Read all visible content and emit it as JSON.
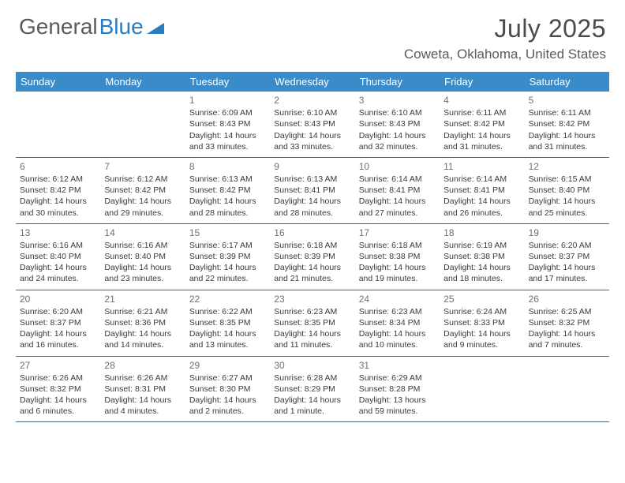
{
  "logo": {
    "text1": "General",
    "text2": "Blue"
  },
  "title": "July 2025",
  "location": "Coweta, Oklahoma, United States",
  "day_labels": [
    "Sunday",
    "Monday",
    "Tuesday",
    "Wednesday",
    "Thursday",
    "Friday",
    "Saturday"
  ],
  "colors": {
    "header_bg": "#3b8bc9",
    "header_text": "#ffffff",
    "border": "#3b6a8f",
    "logo_gray": "#5a5a5a",
    "logo_blue": "#2b7bbf"
  },
  "weeks": [
    [
      {
        "empty": true
      },
      {
        "empty": true
      },
      {
        "num": "1",
        "sunrise": "6:09 AM",
        "sunset": "8:43 PM",
        "daylight": "14 hours and 33 minutes."
      },
      {
        "num": "2",
        "sunrise": "6:10 AM",
        "sunset": "8:43 PM",
        "daylight": "14 hours and 33 minutes."
      },
      {
        "num": "3",
        "sunrise": "6:10 AM",
        "sunset": "8:43 PM",
        "daylight": "14 hours and 32 minutes."
      },
      {
        "num": "4",
        "sunrise": "6:11 AM",
        "sunset": "8:42 PM",
        "daylight": "14 hours and 31 minutes."
      },
      {
        "num": "5",
        "sunrise": "6:11 AM",
        "sunset": "8:42 PM",
        "daylight": "14 hours and 31 minutes."
      }
    ],
    [
      {
        "num": "6",
        "sunrise": "6:12 AM",
        "sunset": "8:42 PM",
        "daylight": "14 hours and 30 minutes."
      },
      {
        "num": "7",
        "sunrise": "6:12 AM",
        "sunset": "8:42 PM",
        "daylight": "14 hours and 29 minutes."
      },
      {
        "num": "8",
        "sunrise": "6:13 AM",
        "sunset": "8:42 PM",
        "daylight": "14 hours and 28 minutes."
      },
      {
        "num": "9",
        "sunrise": "6:13 AM",
        "sunset": "8:41 PM",
        "daylight": "14 hours and 28 minutes."
      },
      {
        "num": "10",
        "sunrise": "6:14 AM",
        "sunset": "8:41 PM",
        "daylight": "14 hours and 27 minutes."
      },
      {
        "num": "11",
        "sunrise": "6:14 AM",
        "sunset": "8:41 PM",
        "daylight": "14 hours and 26 minutes."
      },
      {
        "num": "12",
        "sunrise": "6:15 AM",
        "sunset": "8:40 PM",
        "daylight": "14 hours and 25 minutes."
      }
    ],
    [
      {
        "num": "13",
        "sunrise": "6:16 AM",
        "sunset": "8:40 PM",
        "daylight": "14 hours and 24 minutes."
      },
      {
        "num": "14",
        "sunrise": "6:16 AM",
        "sunset": "8:40 PM",
        "daylight": "14 hours and 23 minutes."
      },
      {
        "num": "15",
        "sunrise": "6:17 AM",
        "sunset": "8:39 PM",
        "daylight": "14 hours and 22 minutes."
      },
      {
        "num": "16",
        "sunrise": "6:18 AM",
        "sunset": "8:39 PM",
        "daylight": "14 hours and 21 minutes."
      },
      {
        "num": "17",
        "sunrise": "6:18 AM",
        "sunset": "8:38 PM",
        "daylight": "14 hours and 19 minutes."
      },
      {
        "num": "18",
        "sunrise": "6:19 AM",
        "sunset": "8:38 PM",
        "daylight": "14 hours and 18 minutes."
      },
      {
        "num": "19",
        "sunrise": "6:20 AM",
        "sunset": "8:37 PM",
        "daylight": "14 hours and 17 minutes."
      }
    ],
    [
      {
        "num": "20",
        "sunrise": "6:20 AM",
        "sunset": "8:37 PM",
        "daylight": "14 hours and 16 minutes."
      },
      {
        "num": "21",
        "sunrise": "6:21 AM",
        "sunset": "8:36 PM",
        "daylight": "14 hours and 14 minutes."
      },
      {
        "num": "22",
        "sunrise": "6:22 AM",
        "sunset": "8:35 PM",
        "daylight": "14 hours and 13 minutes."
      },
      {
        "num": "23",
        "sunrise": "6:23 AM",
        "sunset": "8:35 PM",
        "daylight": "14 hours and 11 minutes."
      },
      {
        "num": "24",
        "sunrise": "6:23 AM",
        "sunset": "8:34 PM",
        "daylight": "14 hours and 10 minutes."
      },
      {
        "num": "25",
        "sunrise": "6:24 AM",
        "sunset": "8:33 PM",
        "daylight": "14 hours and 9 minutes."
      },
      {
        "num": "26",
        "sunrise": "6:25 AM",
        "sunset": "8:32 PM",
        "daylight": "14 hours and 7 minutes."
      }
    ],
    [
      {
        "num": "27",
        "sunrise": "6:26 AM",
        "sunset": "8:32 PM",
        "daylight": "14 hours and 6 minutes."
      },
      {
        "num": "28",
        "sunrise": "6:26 AM",
        "sunset": "8:31 PM",
        "daylight": "14 hours and 4 minutes."
      },
      {
        "num": "29",
        "sunrise": "6:27 AM",
        "sunset": "8:30 PM",
        "daylight": "14 hours and 2 minutes."
      },
      {
        "num": "30",
        "sunrise": "6:28 AM",
        "sunset": "8:29 PM",
        "daylight": "14 hours and 1 minute."
      },
      {
        "num": "31",
        "sunrise": "6:29 AM",
        "sunset": "8:28 PM",
        "daylight": "13 hours and 59 minutes."
      },
      {
        "empty": true
      },
      {
        "empty": true
      }
    ]
  ]
}
